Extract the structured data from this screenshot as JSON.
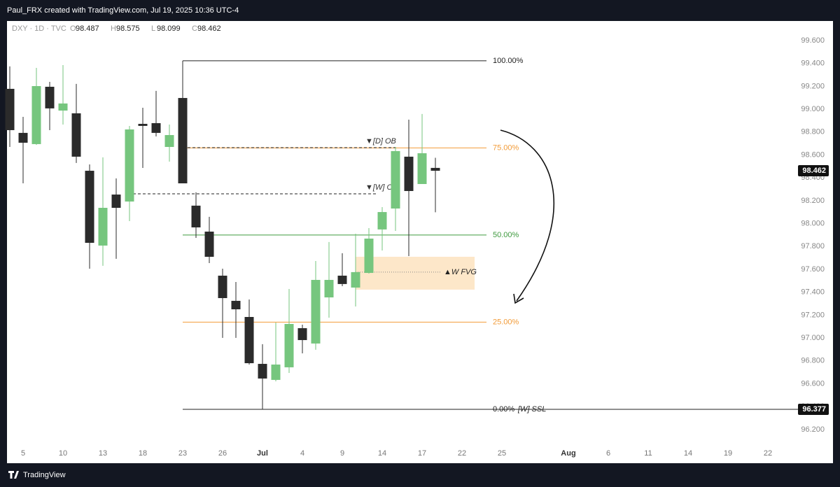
{
  "header": {
    "credit": "Paul_FRX created with TradingView.com, Jul 19, 2025 10:36 UTC-4"
  },
  "footer": {
    "brand": "TradingView"
  },
  "chart_data": {
    "type": "candlestick",
    "symbol": "DXY · 1D · TVC",
    "ohlc_labels": [
      "O",
      "H",
      "L",
      "C"
    ],
    "up_color": "#76c67e",
    "down_color": "#2b2b2b",
    "categories": [
      null,
      "5",
      null,
      null,
      "10",
      null,
      null,
      "13",
      null,
      null,
      "18",
      null,
      null,
      "23",
      null,
      null,
      "26",
      null,
      null,
      "Jul",
      null,
      null,
      "4",
      null,
      null,
      "9",
      null,
      null,
      "14",
      null,
      null,
      "17",
      null,
      null,
      "22",
      null,
      null,
      "25",
      null,
      null,
      null,
      null,
      "Aug",
      null,
      null,
      "6",
      null,
      null,
      "11",
      null,
      null,
      "14",
      null,
      null,
      "19",
      null,
      null,
      "22"
    ],
    "open": [
      99.178,
      98.793,
      98.695,
      99.196,
      98.988,
      98.964,
      98.462,
      97.808,
      98.254,
      98.193,
      98.872,
      98.878,
      98.67,
      99.098,
      98.157,
      97.93,
      97.545,
      97.325,
      97.184,
      96.774,
      96.634,
      96.744,
      97.086,
      96.952,
      97.355,
      97.545,
      97.441,
      97.569,
      97.949,
      98.132,
      98.585,
      98.346,
      98.487,
      null,
      null,
      null,
      null,
      null,
      null,
      null,
      null,
      null,
      null,
      null,
      null,
      null,
      null,
      null,
      null,
      null,
      null,
      null,
      null,
      null,
      null,
      null,
      null,
      null
    ],
    "high": [
      99.374,
      98.933,
      99.361,
      99.239,
      99.386,
      99.221,
      98.517,
      98.579,
      98.395,
      98.854,
      99.013,
      99.16,
      98.866,
      99.423,
      98.273,
      98.059,
      97.606,
      97.49,
      97.337,
      96.946,
      97.135,
      97.429,
      97.117,
      97.673,
      97.839,
      97.741,
      97.912,
      97.961,
      98.144,
      98.67,
      98.909,
      98.958,
      98.575,
      null,
      null,
      null,
      null,
      null,
      null,
      null,
      null,
      null,
      null,
      null,
      null,
      null,
      null,
      null,
      null,
      null,
      null,
      null,
      null,
      null,
      null,
      null,
      null,
      null
    ],
    "low": [
      98.67,
      98.352,
      98.688,
      98.817,
      98.866,
      98.53,
      97.606,
      97.631,
      97.692,
      98.022,
      98.487,
      98.762,
      98.542,
      98.352,
      97.875,
      97.655,
      97.001,
      97.001,
      96.768,
      96.377,
      96.621,
      96.695,
      96.866,
      96.897,
      97.178,
      97.453,
      97.276,
      97.563,
      97.765,
      97.936,
      97.716,
      98.346,
      98.099,
      null,
      null,
      null,
      null,
      null,
      null,
      null,
      null,
      null,
      null,
      null,
      null,
      null,
      null,
      null,
      null,
      null,
      null,
      null,
      null,
      null,
      null,
      null,
      null,
      null
    ],
    "close": [
      98.817,
      98.707,
      99.202,
      99.007,
      99.05,
      98.585,
      97.832,
      98.138,
      98.138,
      98.823,
      98.854,
      98.793,
      98.774,
      98.352,
      97.967,
      97.71,
      97.349,
      97.251,
      96.78,
      96.646,
      96.768,
      97.123,
      96.982,
      97.508,
      97.508,
      97.472,
      97.576,
      97.869,
      98.101,
      98.634,
      98.285,
      98.615,
      98.462,
      null,
      null,
      null,
      null,
      null,
      null,
      null,
      null,
      null,
      null,
      null,
      null,
      null,
      null,
      null,
      null,
      null,
      null,
      null,
      null,
      null,
      null,
      null,
      null,
      null
    ],
    "ylim": [
      95.918,
      99.771
    ],
    "yticks": [
      {
        "value": 99.6,
        "label": "99.600"
      },
      {
        "value": 99.4,
        "label": "99.400"
      },
      {
        "value": 99.2,
        "label": "99.200"
      },
      {
        "value": 99.0,
        "label": "99.000"
      },
      {
        "value": 98.8,
        "label": "98.800"
      },
      {
        "value": 98.6,
        "label": "98.600"
      },
      {
        "value": 98.4,
        "label": "98.400"
      },
      {
        "value": 98.2,
        "label": "98.200"
      },
      {
        "value": 98.0,
        "label": "98.000"
      },
      {
        "value": 97.8,
        "label": "97.800"
      },
      {
        "value": 97.6,
        "label": "97.600"
      },
      {
        "value": 97.4,
        "label": "97.400"
      },
      {
        "value": 97.2,
        "label": "97.200"
      },
      {
        "value": 97.0,
        "label": "97.000"
      },
      {
        "value": 96.8,
        "label": "96.800"
      },
      {
        "value": 96.6,
        "label": "96.600"
      },
      {
        "value": 96.4,
        "label": "96.400"
      },
      {
        "value": 96.2,
        "label": "96.200"
      }
    ],
    "fib": [
      {
        "value": 100,
        "label": "100.00%",
        "color": "#222222"
      },
      {
        "value": 75,
        "label": "75.00%",
        "color": "#f29b38"
      },
      {
        "value": 50,
        "label": "50.00%",
        "color": "#3f9a3f"
      },
      {
        "value": 25,
        "label": "25.00%",
        "color": "#f29b38"
      },
      {
        "value": 0,
        "label": "0.00%",
        "color": "#222222"
      }
    ],
    "annotations": [
      {
        "text": "▼[D] OB",
        "value": 98.664
      },
      {
        "text": "▼[W] OB",
        "value": 98.26
      },
      {
        "text": "▲W FVG",
        "value": 97.576,
        "zone": [
          97.423,
          97.71
        ]
      },
      {
        "text": "[W] SSL"
      }
    ]
  }
}
